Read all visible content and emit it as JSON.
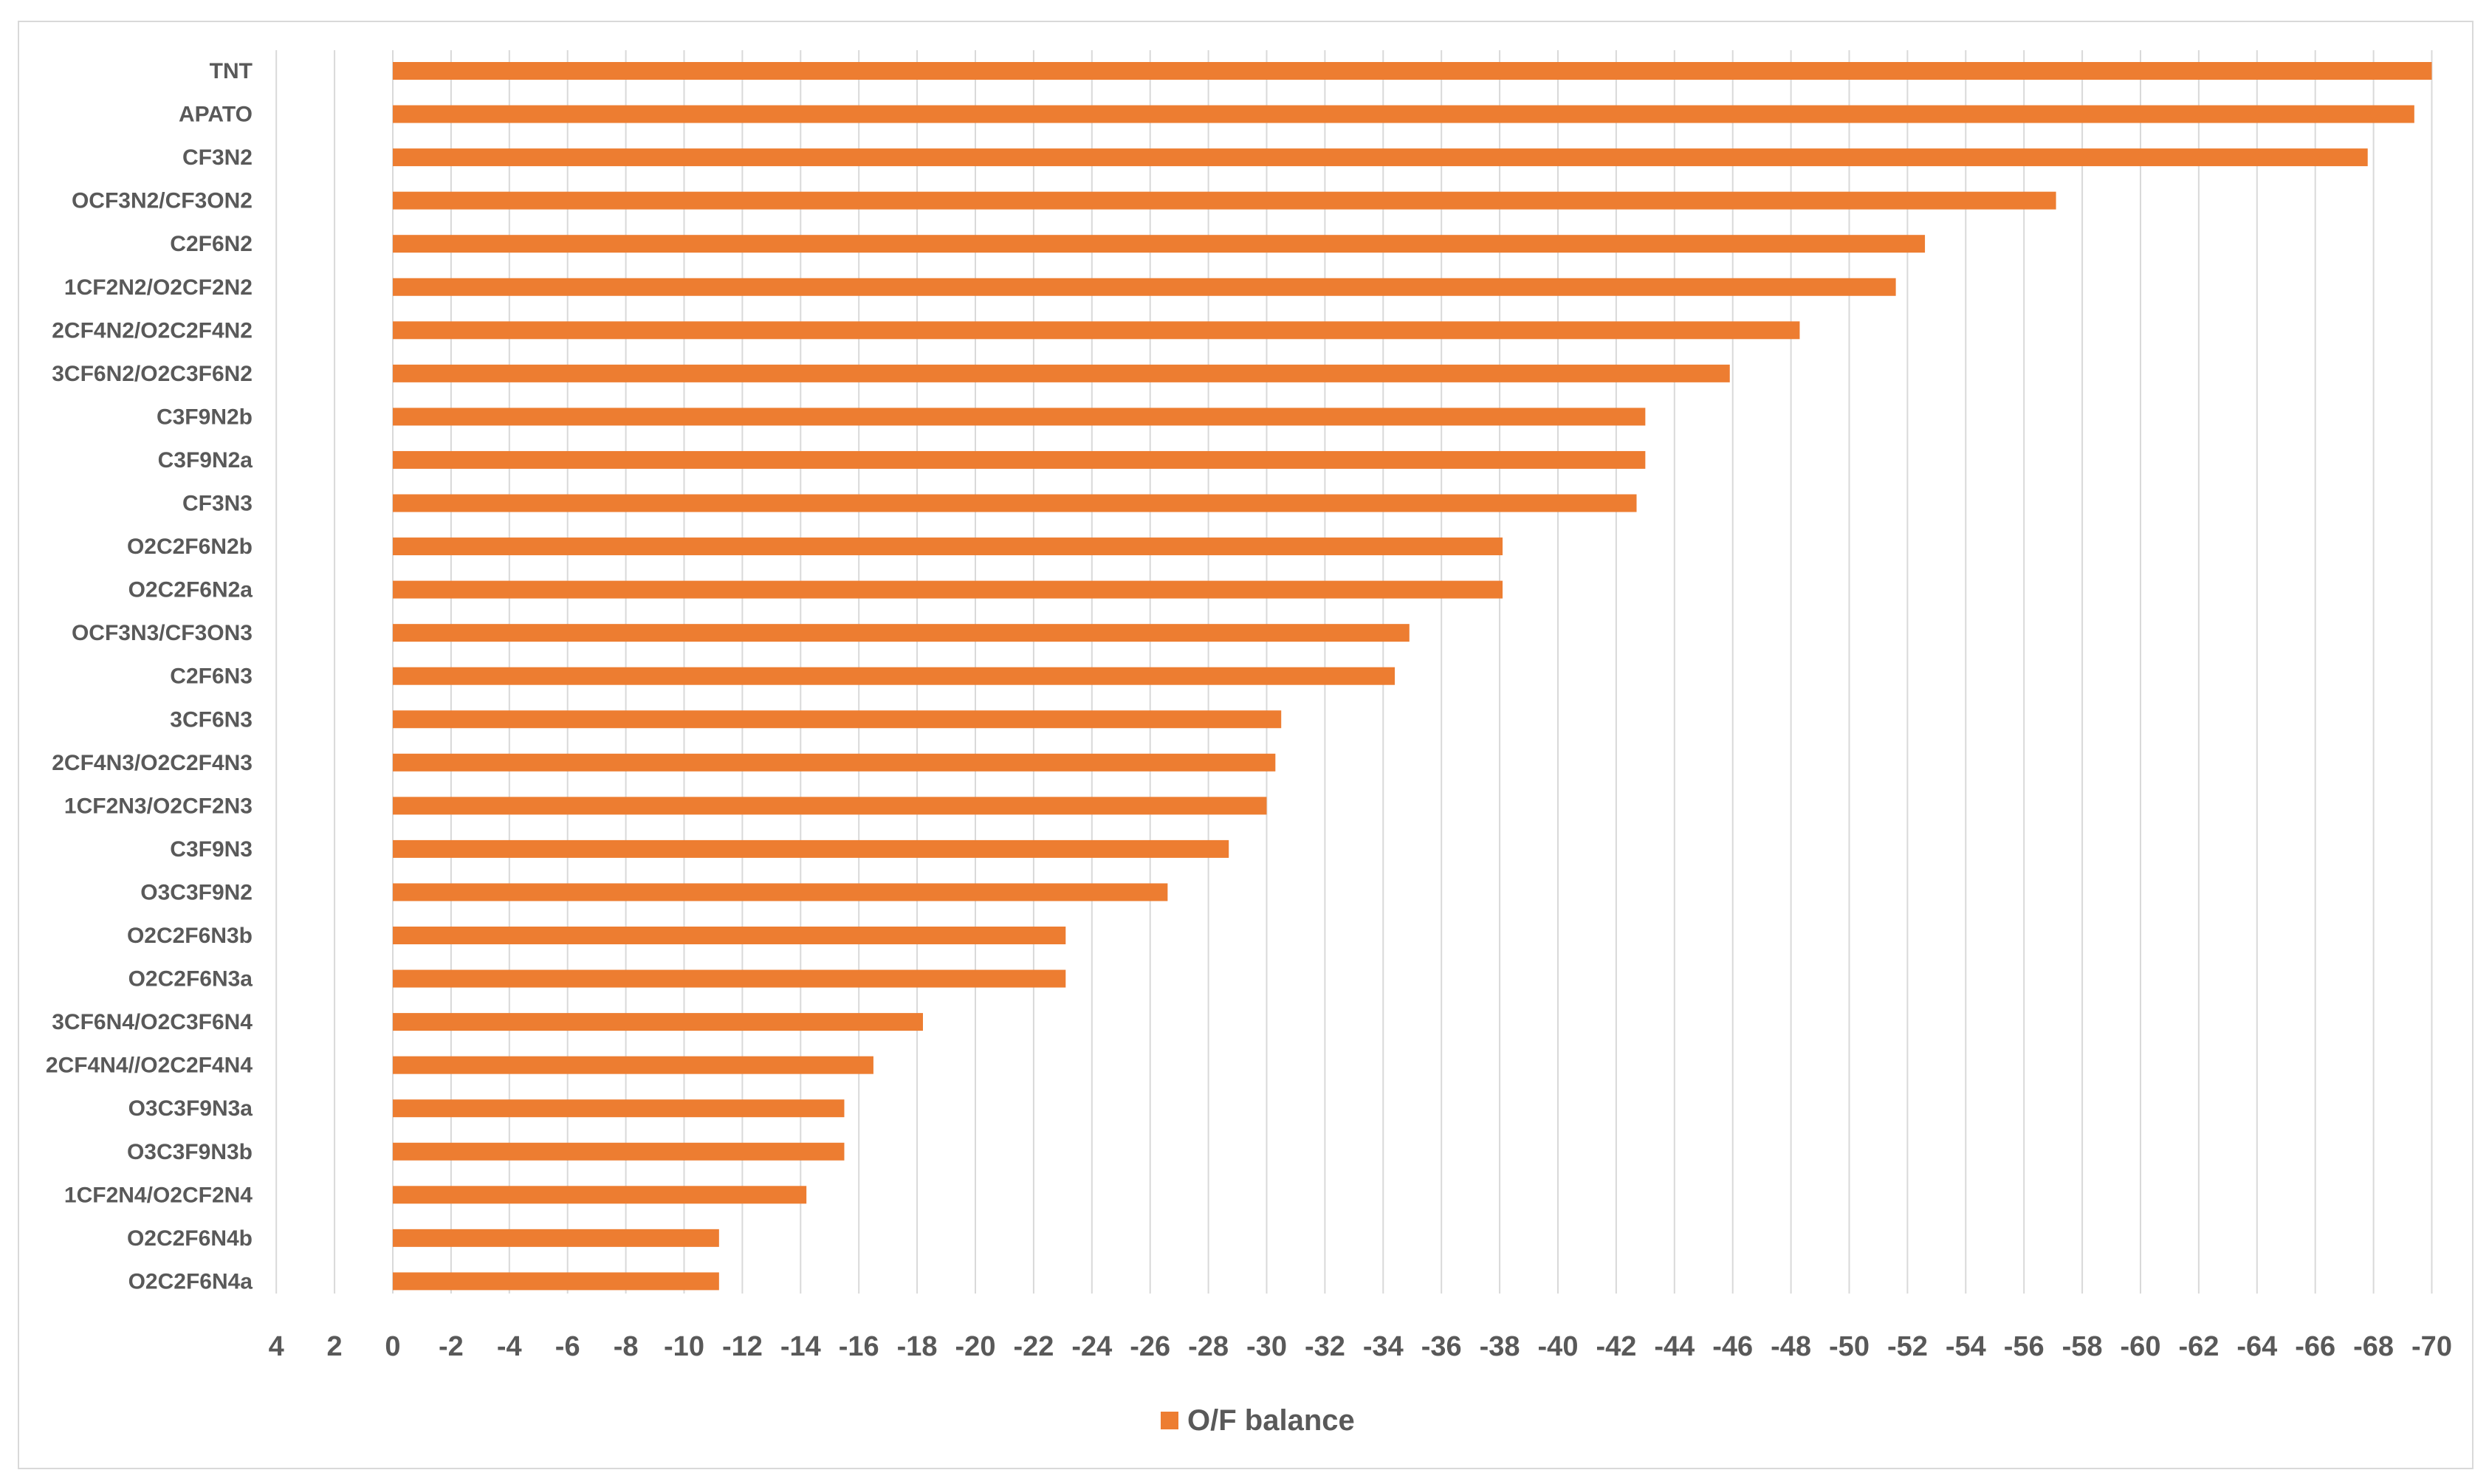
{
  "chart_data": {
    "type": "bar",
    "orientation": "horizontal",
    "categories": [
      "TNT",
      "APATO",
      "CF3N2",
      "OCF3N2/CF3ON2",
      "C2F6N2",
      "1CF2N2/O2CF2N2",
      "2CF4N2/O2C2F4N2",
      "3CF6N2/O2C3F6N2",
      "C3F9N2b",
      "C3F9N2a",
      "CF3N3",
      "O2C2F6N2b",
      "O2C2F6N2a",
      "OCF3N3/CF3ON3",
      "C2F6N3",
      "3CF6N3",
      "2CF4N3/O2C2F4N3",
      "1CF2N3/O2CF2N3",
      "C3F9N3",
      "O3C3F9N2",
      "O2C2F6N3b",
      "O2C2F6N3a",
      "3CF6N4/O2C3F6N4",
      "2CF4N4//O2C2F4N4",
      "O3C3F9N3a",
      "O3C3F9N3b",
      "1CF2N4/O2CF2N4",
      "O2C2F6N4b",
      "O2C2F6N4a"
    ],
    "series": [
      {
        "name": "O/F balance",
        "color": "#ED7D31",
        "values": [
          -70.0,
          -69.4,
          -67.8,
          -57.1,
          -52.6,
          -51.6,
          -48.3,
          -45.9,
          -43.0,
          -43.0,
          -42.7,
          -38.1,
          -38.1,
          -34.9,
          -34.4,
          -30.5,
          -30.3,
          -30.0,
          -28.7,
          -26.6,
          -23.1,
          -23.1,
          -18.2,
          -16.5,
          -15.5,
          -15.5,
          -14.2,
          -11.2,
          -11.2
        ]
      }
    ],
    "x_ticks": [
      "4",
      "2",
      "0",
      "-2",
      "-4",
      "-6",
      "-8",
      "-10",
      "-12",
      "-14",
      "-16",
      "-18",
      "-20",
      "-22",
      "-24",
      "-26",
      "-28",
      "-30",
      "-32",
      "-34",
      "-36",
      "-38",
      "-40",
      "-42",
      "-44",
      "-46",
      "-48",
      "-50",
      "-52",
      "-54",
      "-56",
      "-58",
      "-60",
      "-62",
      "-64",
      "-66",
      "-68",
      "-70"
    ],
    "xlim": [
      4,
      -70
    ],
    "x_reversed": true,
    "grid": "vertical",
    "legend": "bottom",
    "title": "",
    "xlabel": "",
    "ylabel": ""
  },
  "colors": {
    "bar": "#ED7D31",
    "grid": "#d9d9d9",
    "text": "#595959"
  }
}
